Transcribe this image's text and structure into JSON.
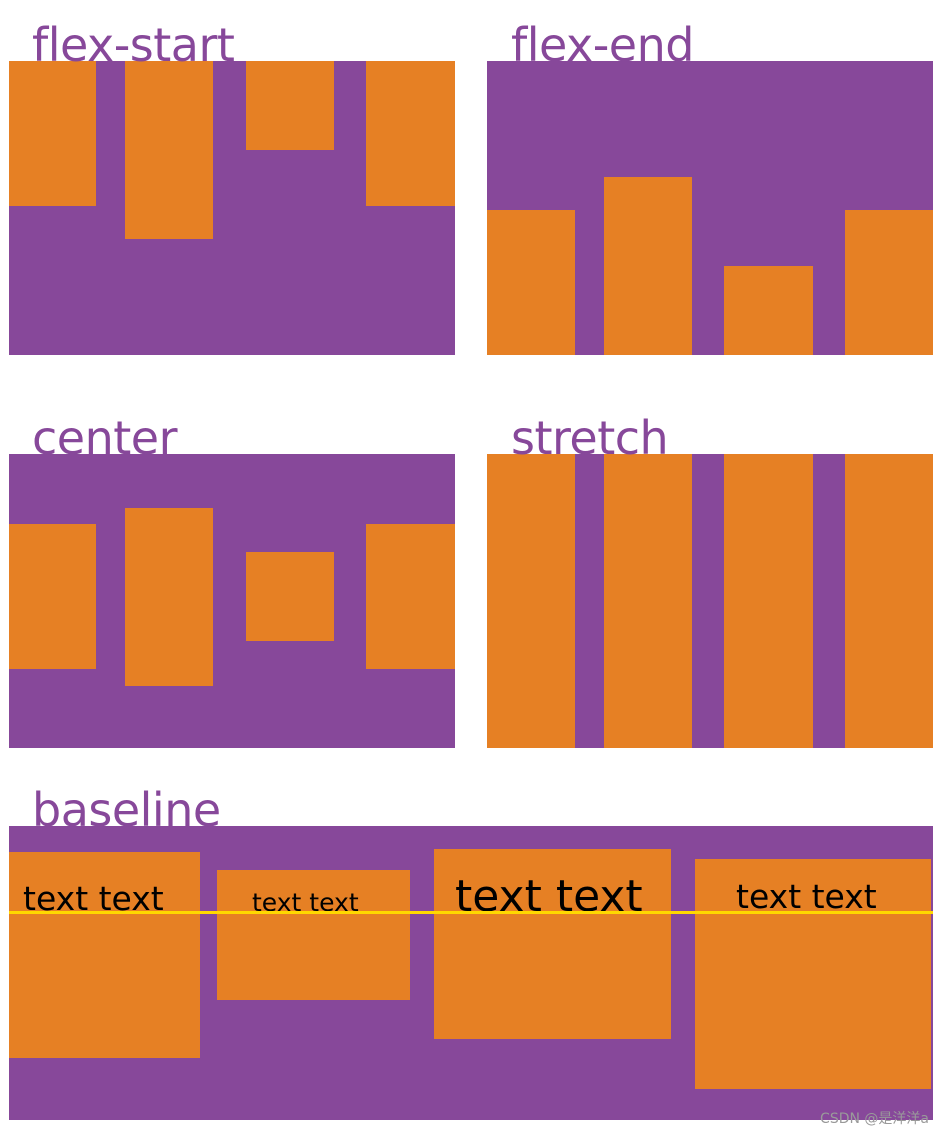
{
  "colors": {
    "container": "#87489a",
    "item": "#e68024",
    "baseline": "#ffd800",
    "label": "#87489a"
  },
  "panels": {
    "flex_start": {
      "label": "flex-start"
    },
    "flex_end": {
      "label": "flex-end"
    },
    "center": {
      "label": "center"
    },
    "stretch": {
      "label": "stretch"
    },
    "baseline": {
      "label": "baseline",
      "items": [
        {
          "text": "text text"
        },
        {
          "text": "text text"
        },
        {
          "text": "text text"
        },
        {
          "text": "text text"
        }
      ]
    }
  },
  "watermark": "CSDN @是洋洋a"
}
